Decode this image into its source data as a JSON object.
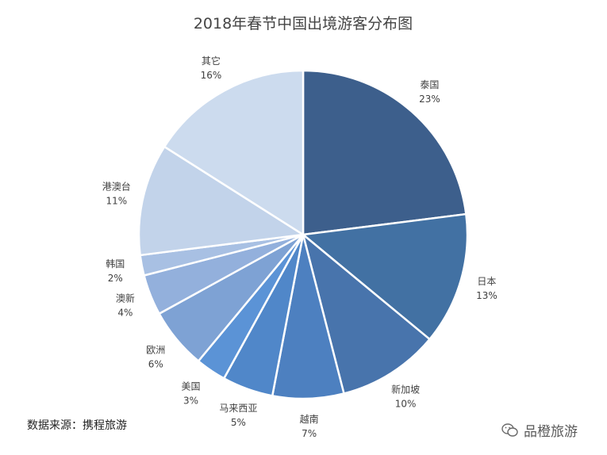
{
  "chart_data": {
    "type": "pie",
    "title": "2018年春节中国出境游客分布图",
    "slices": [
      {
        "label": "泰国",
        "value": 23,
        "value_label": "23%",
        "color": "#3d5f8c"
      },
      {
        "label": "日本",
        "value": 13,
        "value_label": "13%",
        "color": "#4271a3"
      },
      {
        "label": "新加坡",
        "value": 10,
        "value_label": "10%",
        "color": "#4874ac"
      },
      {
        "label": "越南",
        "value": 7,
        "value_label": "7%",
        "color": "#4d80c0"
      },
      {
        "label": "马来西亚",
        "value": 5,
        "value_label": "5%",
        "color": "#5087c9"
      },
      {
        "label": "美国",
        "value": 3,
        "value_label": "3%",
        "color": "#5b93d6"
      },
      {
        "label": "欧洲",
        "value": 6,
        "value_label": "6%",
        "color": "#7ea2d4"
      },
      {
        "label": "澳新",
        "value": 4,
        "value_label": "4%",
        "color": "#93b0dc"
      },
      {
        "label": "韩国",
        "value": 2,
        "value_label": "2%",
        "color": "#a8c0e3"
      },
      {
        "label": "港澳台",
        "value": 11,
        "value_label": "11%",
        "color": "#c2d3ea"
      },
      {
        "label": "其它",
        "value": 16,
        "value_label": "16%",
        "color": "#ccdbee"
      }
    ]
  },
  "footer": {
    "source": "数据来源：携程旅游",
    "watermark": "品橙旅游",
    "watermark_icon": "wechat-icon"
  }
}
